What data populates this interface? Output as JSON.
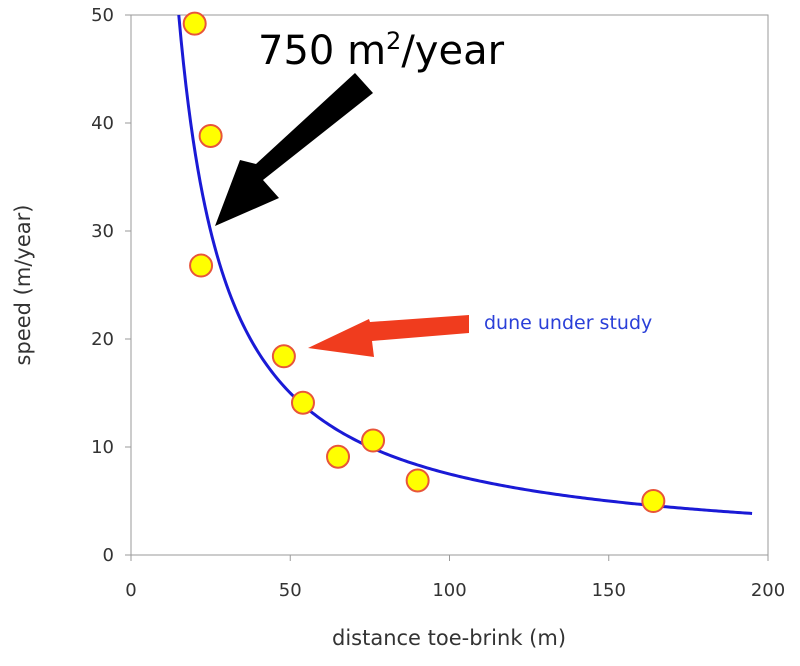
{
  "chart_data": {
    "type": "scatter",
    "xlabel": "distance toe-brink (m)",
    "ylabel": "speed (m/year)",
    "xlim": [
      0,
      200
    ],
    "ylim": [
      0,
      50
    ],
    "x_ticks": [
      "0",
      "50",
      "100",
      "150",
      "200"
    ],
    "y_ticks": [
      "0",
      "10",
      "20",
      "30",
      "40",
      "50"
    ],
    "grid": false,
    "series": [
      {
        "type": "scatter",
        "x": [
          20,
          25,
          22,
          48,
          54,
          65,
          76,
          90,
          164
        ],
        "y": [
          49.2,
          38.8,
          26.8,
          18.4,
          14.1,
          9.1,
          10.6,
          6.9,
          5.0
        ],
        "color": "#ffff00",
        "edge_color": "#e8553a"
      },
      {
        "type": "line",
        "function": "y = 750 / x",
        "x_range": [
          15,
          195
        ],
        "color": "#1a1ad6"
      }
    ],
    "annotations": [
      {
        "text_main": "750 m",
        "text_sup": "2",
        "text_tail": "/year",
        "arrow_color": "#000000",
        "target": [
          25,
          30
        ]
      },
      {
        "text": "dune under study",
        "text_color": "#2a3fd8",
        "arrow_color": "#f03c1e",
        "target": [
          48,
          18.4
        ]
      }
    ]
  }
}
